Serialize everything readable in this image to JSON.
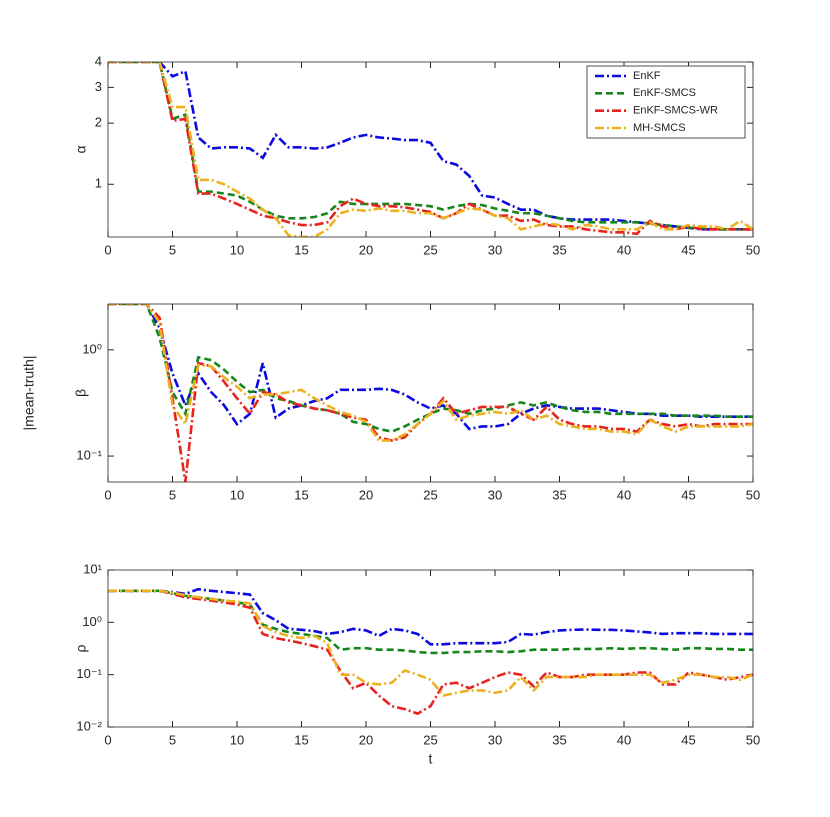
{
  "figure": {
    "ylabel": "|mean-truth|"
  },
  "chart_data": [
    {
      "type": "line",
      "log_y": true,
      "ylabel": "α",
      "legend": "upper right",
      "x": [
        0,
        1,
        2,
        3,
        4,
        5,
        6,
        7,
        8,
        9,
        10,
        11,
        12,
        13,
        14,
        15,
        16,
        17,
        18,
        19,
        20,
        21,
        22,
        23,
        24,
        25,
        26,
        27,
        28,
        29,
        30,
        31,
        32,
        33,
        34,
        35,
        36,
        37,
        38,
        39,
        40,
        41,
        42,
        43,
        44,
        45,
        46,
        47,
        48,
        49,
        50
      ],
      "xlim": [
        0,
        50
      ],
      "xticks": [
        0,
        5,
        10,
        15,
        20,
        25,
        30,
        35,
        40,
        45,
        50
      ],
      "ylim": [
        0.55,
        4
      ],
      "yticks": [
        1,
        2,
        3,
        4
      ],
      "series": [
        {
          "name": "EnKF",
          "color": "#0a0ae0",
          "line_style": "dashdot",
          "values": [
            4,
            4,
            4,
            4,
            4,
            3.4,
            3.6,
            1.7,
            1.5,
            1.52,
            1.52,
            1.5,
            1.35,
            1.75,
            1.52,
            1.52,
            1.5,
            1.52,
            1.6,
            1.7,
            1.75,
            1.7,
            1.68,
            1.65,
            1.65,
            1.6,
            1.3,
            1.25,
            1.1,
            0.88,
            0.86,
            0.8,
            0.75,
            0.75,
            0.7,
            0.68,
            0.67,
            0.67,
            0.67,
            0.67,
            0.66,
            0.65,
            0.64,
            0.63,
            0.62,
            0.61,
            0.6,
            0.6,
            0.6,
            0.6,
            0.6
          ]
        },
        {
          "name": "EnKF-SMCS",
          "color": "#17861a",
          "line_style": "dashed",
          "values": [
            4,
            4,
            4,
            4,
            4,
            2.1,
            2.2,
            0.92,
            0.92,
            0.9,
            0.88,
            0.82,
            0.75,
            0.7,
            0.68,
            0.68,
            0.69,
            0.72,
            0.82,
            0.8,
            0.8,
            0.8,
            0.8,
            0.8,
            0.79,
            0.78,
            0.75,
            0.78,
            0.8,
            0.79,
            0.76,
            0.74,
            0.72,
            0.72,
            0.7,
            0.68,
            0.66,
            0.65,
            0.65,
            0.65,
            0.65,
            0.65,
            0.64,
            0.63,
            0.62,
            0.61,
            0.61,
            0.6,
            0.6,
            0.6,
            0.6
          ]
        },
        {
          "name": "EnKF-SMCS-WR",
          "color": "#e8231e",
          "line_style": "dashdot",
          "values": [
            4,
            4,
            4,
            4,
            4,
            2.05,
            2.1,
            0.9,
            0.9,
            0.85,
            0.8,
            0.75,
            0.7,
            0.68,
            0.65,
            0.63,
            0.63,
            0.65,
            0.78,
            0.85,
            0.8,
            0.78,
            0.78,
            0.77,
            0.75,
            0.73,
            0.68,
            0.72,
            0.8,
            0.75,
            0.7,
            0.7,
            0.66,
            0.67,
            0.63,
            0.62,
            0.62,
            0.6,
            0.59,
            0.58,
            0.58,
            0.57,
            0.66,
            0.62,
            0.6,
            0.62,
            0.6,
            0.6,
            0.6,
            0.6,
            0.6
          ]
        },
        {
          "name": "MH-SMCS",
          "color": "#edb120",
          "line_style": "dashdot",
          "values": [
            4,
            4,
            4,
            4,
            4,
            2.4,
            2.4,
            1.05,
            1.05,
            1.0,
            0.92,
            0.85,
            0.75,
            0.68,
            0.56,
            0.55,
            0.55,
            0.6,
            0.72,
            0.75,
            0.74,
            0.76,
            0.74,
            0.74,
            0.72,
            0.72,
            0.68,
            0.72,
            0.76,
            0.75,
            0.7,
            0.68,
            0.6,
            0.62,
            0.64,
            0.63,
            0.6,
            0.63,
            0.62,
            0.6,
            0.6,
            0.6,
            0.65,
            0.6,
            0.6,
            0.63,
            0.62,
            0.62,
            0.6,
            0.66,
            0.6
          ]
        }
      ]
    },
    {
      "type": "line",
      "log_y": true,
      "ylabel": "β",
      "x": [
        0,
        1,
        2,
        3,
        4,
        5,
        6,
        7,
        8,
        9,
        10,
        11,
        12,
        13,
        14,
        15,
        16,
        17,
        18,
        19,
        20,
        21,
        22,
        23,
        24,
        25,
        26,
        27,
        28,
        29,
        30,
        31,
        32,
        33,
        34,
        35,
        36,
        37,
        38,
        39,
        40,
        41,
        42,
        43,
        44,
        45,
        46,
        47,
        48,
        49,
        50
      ],
      "xlim": [
        0,
        50
      ],
      "xticks": [
        0,
        5,
        10,
        15,
        20,
        25,
        30,
        35,
        40,
        45,
        50
      ],
      "ylim": [
        0.057,
        2.7
      ],
      "yticks": [
        {
          "value": 0.1,
          "label": "10⁻¹"
        },
        {
          "value": 1,
          "label": "10⁰"
        }
      ],
      "series": [
        {
          "name": "EnKF",
          "color": "#0a0ae0",
          "line_style": "dashdot",
          "values": [
            2.7,
            2.7,
            2.7,
            2.7,
            1.6,
            0.6,
            0.3,
            0.6,
            0.4,
            0.3,
            0.2,
            0.25,
            0.75,
            0.23,
            0.28,
            0.3,
            0.33,
            0.35,
            0.42,
            0.42,
            0.42,
            0.43,
            0.42,
            0.38,
            0.32,
            0.28,
            0.3,
            0.25,
            0.18,
            0.19,
            0.19,
            0.2,
            0.25,
            0.28,
            0.3,
            0.29,
            0.28,
            0.28,
            0.28,
            0.27,
            0.26,
            0.25,
            0.25,
            0.24,
            0.24,
            0.24,
            0.235,
            0.235,
            0.235,
            0.235,
            0.235
          ]
        },
        {
          "name": "EnKF-SMCS",
          "color": "#17861a",
          "line_style": "dashed",
          "values": [
            2.7,
            2.7,
            2.7,
            2.7,
            1.3,
            0.4,
            0.25,
            0.85,
            0.8,
            0.65,
            0.5,
            0.4,
            0.42,
            0.35,
            0.33,
            0.3,
            0.28,
            0.27,
            0.25,
            0.21,
            0.2,
            0.18,
            0.17,
            0.19,
            0.22,
            0.25,
            0.28,
            0.27,
            0.25,
            0.27,
            0.28,
            0.3,
            0.32,
            0.3,
            0.32,
            0.29,
            0.27,
            0.26,
            0.26,
            0.25,
            0.25,
            0.25,
            0.25,
            0.25,
            0.24,
            0.24,
            0.24,
            0.24,
            0.235,
            0.235,
            0.235
          ]
        },
        {
          "name": "EnKF-SMCS-WR",
          "color": "#e8231e",
          "line_style": "dashdot",
          "values": [
            2.7,
            2.7,
            2.7,
            2.7,
            2.0,
            0.35,
            0.057,
            0.75,
            0.7,
            0.5,
            0.35,
            0.25,
            0.4,
            0.38,
            0.32,
            0.3,
            0.28,
            0.27,
            0.25,
            0.23,
            0.22,
            0.15,
            0.14,
            0.15,
            0.2,
            0.25,
            0.35,
            0.25,
            0.27,
            0.29,
            0.29,
            0.29,
            0.25,
            0.22,
            0.29,
            0.22,
            0.2,
            0.19,
            0.19,
            0.18,
            0.18,
            0.17,
            0.22,
            0.2,
            0.19,
            0.2,
            0.19,
            0.2,
            0.2,
            0.2,
            0.2
          ]
        },
        {
          "name": "MH-SMCS",
          "color": "#edb120",
          "line_style": "dashdot",
          "values": [
            2.7,
            2.7,
            2.7,
            2.7,
            1.8,
            0.3,
            0.2,
            0.72,
            0.7,
            0.55,
            0.45,
            0.35,
            0.38,
            0.38,
            0.4,
            0.42,
            0.35,
            0.3,
            0.26,
            0.24,
            0.21,
            0.14,
            0.14,
            0.16,
            0.2,
            0.25,
            0.33,
            0.22,
            0.24,
            0.25,
            0.26,
            0.25,
            0.27,
            0.22,
            0.24,
            0.2,
            0.19,
            0.18,
            0.18,
            0.17,
            0.17,
            0.16,
            0.22,
            0.19,
            0.17,
            0.19,
            0.19,
            0.19,
            0.19,
            0.19,
            0.2
          ]
        }
      ]
    },
    {
      "type": "line",
      "log_y": true,
      "ylabel": "ρ",
      "xlabel": "t",
      "x": [
        0,
        1,
        2,
        3,
        4,
        5,
        6,
        7,
        8,
        9,
        10,
        11,
        12,
        13,
        14,
        15,
        16,
        17,
        18,
        19,
        20,
        21,
        22,
        23,
        24,
        25,
        26,
        27,
        28,
        29,
        30,
        31,
        32,
        33,
        34,
        35,
        36,
        37,
        38,
        39,
        40,
        41,
        42,
        43,
        44,
        45,
        46,
        47,
        48,
        49,
        50
      ],
      "xlim": [
        0,
        50
      ],
      "xticks": [
        0,
        5,
        10,
        15,
        20,
        25,
        30,
        35,
        40,
        45,
        50
      ],
      "ylim": [
        0.01,
        10
      ],
      "yticks": [
        {
          "value": 0.01,
          "label": "10⁻²"
        },
        {
          "value": 0.1,
          "label": "10⁻¹"
        },
        {
          "value": 1,
          "label": "10⁰"
        },
        {
          "value": 10,
          "label": "10¹"
        }
      ],
      "series": [
        {
          "name": "EnKF",
          "color": "#0a0ae0",
          "line_style": "dashdot",
          "values": [
            4,
            4,
            4,
            4,
            4,
            3.8,
            3.5,
            4.3,
            4.0,
            3.8,
            3.6,
            3.4,
            1.5,
            1.1,
            0.75,
            0.72,
            0.68,
            0.6,
            0.65,
            0.75,
            0.7,
            0.55,
            0.75,
            0.7,
            0.6,
            0.38,
            0.38,
            0.4,
            0.4,
            0.4,
            0.4,
            0.42,
            0.6,
            0.58,
            0.65,
            0.7,
            0.72,
            0.73,
            0.72,
            0.72,
            0.7,
            0.67,
            0.64,
            0.6,
            0.62,
            0.62,
            0.62,
            0.6,
            0.6,
            0.6,
            0.6
          ]
        },
        {
          "name": "EnKF-SMCS",
          "color": "#17861a",
          "line_style": "dashed",
          "values": [
            4,
            4,
            4,
            4,
            4,
            3.6,
            3.2,
            3.0,
            2.8,
            2.6,
            2.4,
            2.2,
            0.9,
            0.75,
            0.65,
            0.6,
            0.55,
            0.5,
            0.3,
            0.32,
            0.32,
            0.3,
            0.3,
            0.29,
            0.27,
            0.26,
            0.26,
            0.27,
            0.27,
            0.28,
            0.28,
            0.27,
            0.28,
            0.3,
            0.3,
            0.3,
            0.31,
            0.31,
            0.31,
            0.32,
            0.31,
            0.32,
            0.32,
            0.31,
            0.3,
            0.32,
            0.32,
            0.31,
            0.31,
            0.3,
            0.3
          ]
        },
        {
          "name": "EnKF-SMCS-WR",
          "color": "#e8231e",
          "line_style": "dashdot",
          "values": [
            4,
            4,
            4,
            4,
            4,
            3.5,
            3.0,
            2.8,
            2.6,
            2.4,
            2.2,
            1.9,
            0.6,
            0.5,
            0.45,
            0.4,
            0.35,
            0.3,
            0.12,
            0.055,
            0.07,
            0.04,
            0.025,
            0.022,
            0.018,
            0.025,
            0.065,
            0.07,
            0.055,
            0.07,
            0.09,
            0.11,
            0.1,
            0.06,
            0.11,
            0.09,
            0.09,
            0.1,
            0.1,
            0.1,
            0.1,
            0.11,
            0.11,
            0.065,
            0.065,
            0.11,
            0.1,
            0.09,
            0.08,
            0.09,
            0.1
          ]
        },
        {
          "name": "MH-SMCS",
          "color": "#edb120",
          "line_style": "dashdot",
          "values": [
            4,
            4,
            4,
            4,
            4,
            3.7,
            3.3,
            3.0,
            2.8,
            2.6,
            2.5,
            2.3,
            0.85,
            0.65,
            0.55,
            0.5,
            0.55,
            0.4,
            0.1,
            0.1,
            0.07,
            0.065,
            0.07,
            0.12,
            0.1,
            0.08,
            0.04,
            0.045,
            0.05,
            0.05,
            0.045,
            0.05,
            0.09,
            0.05,
            0.09,
            0.09,
            0.09,
            0.09,
            0.1,
            0.1,
            0.1,
            0.1,
            0.1,
            0.07,
            0.08,
            0.1,
            0.1,
            0.09,
            0.09,
            0.08,
            0.1
          ]
        }
      ]
    }
  ]
}
